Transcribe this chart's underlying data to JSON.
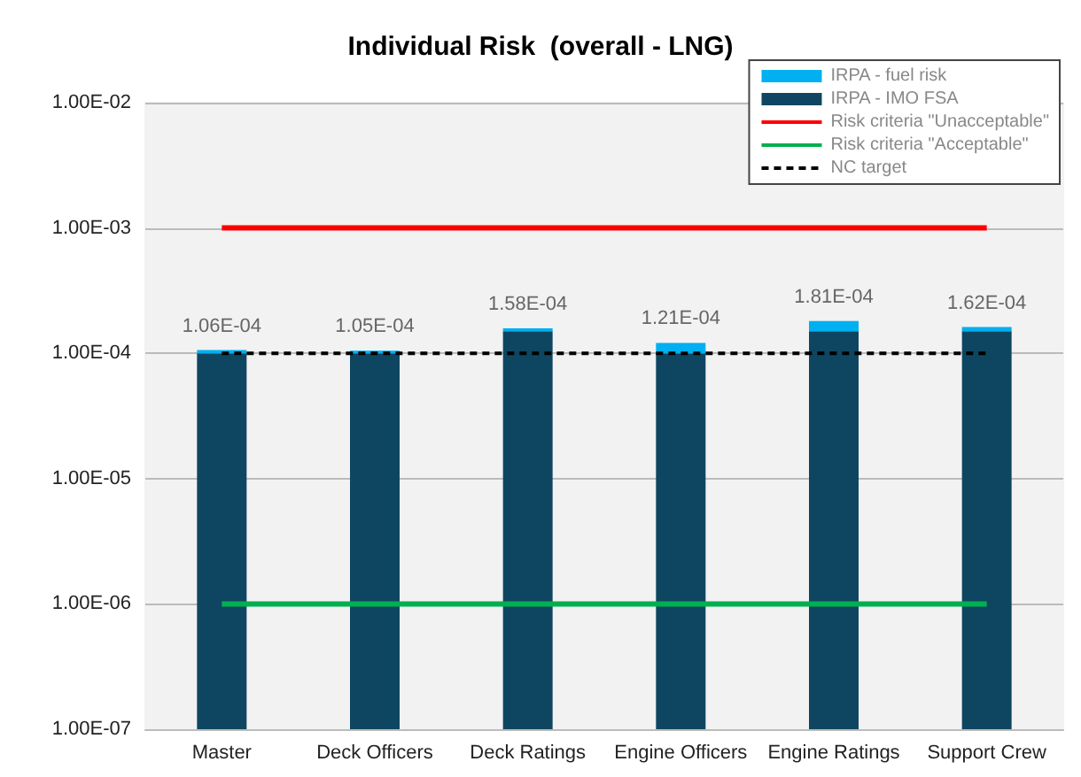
{
  "chart_data": {
    "type": "bar",
    "title": "Individual Risk  (overall - LNG)",
    "stacked": true,
    "log": "y",
    "grid": "y",
    "legend": "top right",
    "categories": [
      "Master",
      "Deck Officers",
      "Deck Ratings",
      "Engine Officers",
      "Engine Ratings",
      "Support Crew"
    ],
    "series": [
      {
        "name": "IRPA - IMO FSA",
        "color": "#0e4661",
        "values": [
          0.0001,
          0.0001,
          0.00015,
          0.0001,
          0.00015,
          0.00015
        ]
      },
      {
        "name": "IRPA - fuel risk",
        "color": "#00b0f0",
        "values": [
          6e-06,
          5e-06,
          8e-06,
          2.1e-05,
          3.1e-05,
          1.2e-05
        ]
      },
      {
        "name": "Risk criteria \"Unacceptable\"",
        "type": "line",
        "color": "#ff0000",
        "line_style": "solid",
        "values": [
          0.001,
          0.001,
          0.001,
          0.001,
          0.001,
          0.001
        ]
      },
      {
        "name": "Risk criteria \"Acceptable\"",
        "type": "line",
        "color": "#00b050",
        "line_style": "solid",
        "values": [
          1e-06,
          1e-06,
          1e-06,
          1e-06,
          1e-06,
          1e-06
        ]
      },
      {
        "name": "NC target",
        "type": "line",
        "color": "#000000",
        "line_style": "dashed",
        "values": [
          0.0001,
          0.0001,
          0.0001,
          0.0001,
          0.0001,
          0.0001
        ]
      }
    ],
    "totals": [
      "1.06E-04",
      "1.05E-04",
      "1.58E-04",
      "1.21E-04",
      "1.81E-04",
      "1.62E-04"
    ],
    "ylim": [
      1e-07,
      0.01
    ],
    "yticks": [
      {
        "value": 1e-07,
        "label": "1.00E-07"
      },
      {
        "value": 1e-06,
        "label": "1.00E-06"
      },
      {
        "value": 1e-05,
        "label": "1.00E-05"
      },
      {
        "value": 0.0001,
        "label": "1.00E-04"
      },
      {
        "value": 0.001,
        "label": "1.00E-03"
      },
      {
        "value": 0.01,
        "label": "1.00E-02"
      }
    ]
  }
}
